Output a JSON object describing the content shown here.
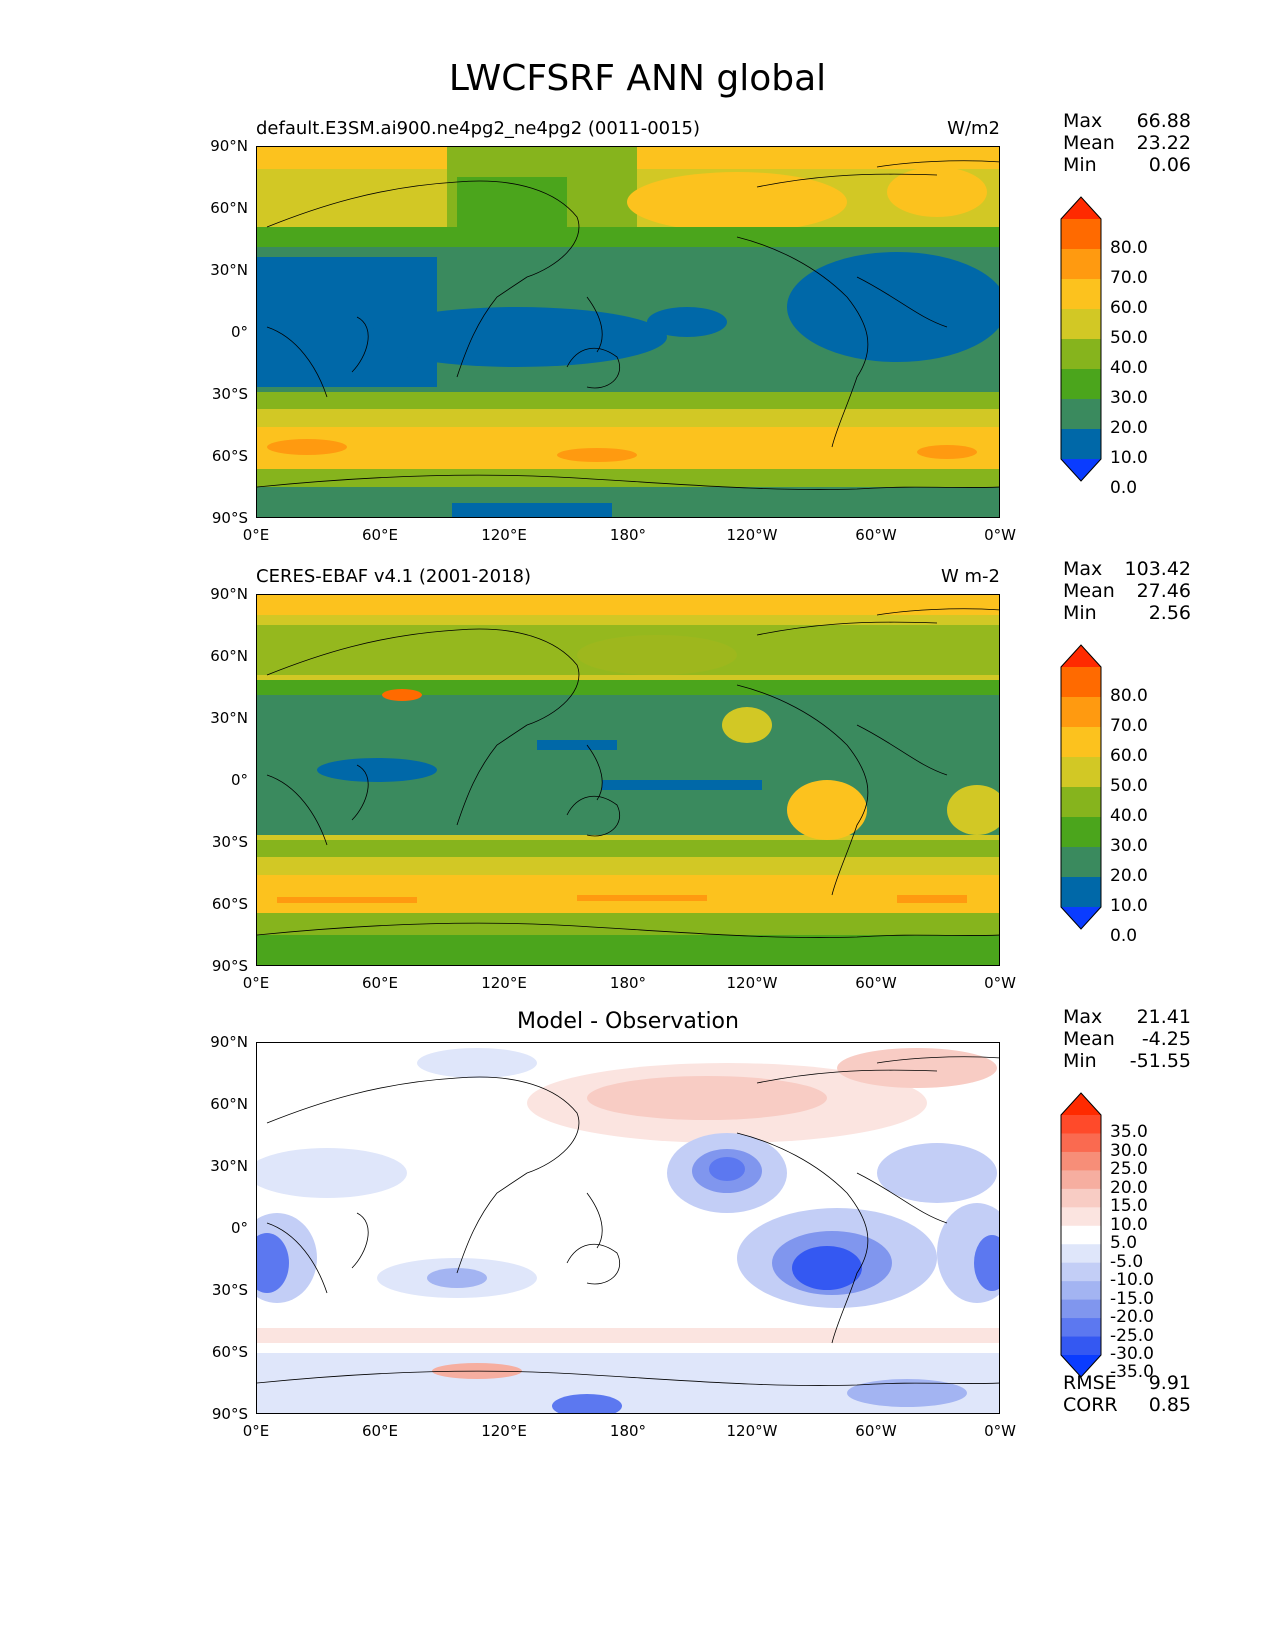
{
  "title": "LWCFSRF ANN global",
  "lat_labels": [
    "90°N",
    "60°N",
    "30°N",
    "0°",
    "30°S",
    "60°S",
    "90°S"
  ],
  "lon_labels": [
    "0°E",
    "60°E",
    "120°E",
    "180°",
    "120°W",
    "60°W",
    "0°W"
  ],
  "panels": [
    {
      "left_title": "default.E3SM.ai900.ne4pg2_ne4pg2 (0011-0015)",
      "right_title": "W/m2",
      "center_title": "",
      "stats": [
        {
          "label": "Max",
          "value": "66.88"
        },
        {
          "label": "Mean",
          "value": "23.22"
        },
        {
          "label": "Min",
          "value": "0.06"
        }
      ],
      "colorbar_labels": [
        "80.0",
        "70.0",
        "60.0",
        "50.0",
        "40.0",
        "30.0",
        "20.0",
        "10.0",
        "0.0"
      ],
      "colorbar_colors": [
        "#ff2a00",
        "#ff6a00",
        "#ff9a10",
        "#fcc21e",
        "#d2c825",
        "#86b41d",
        "#4ba51c",
        "#3a8a5e",
        "#0068a8",
        "#0a3cff"
      ]
    },
    {
      "left_title": "CERES-EBAF v4.1 (2001-2018)",
      "right_title": "W m-2",
      "center_title": "",
      "stats": [
        {
          "label": "Max",
          "value": "103.42"
        },
        {
          "label": "Mean",
          "value": "27.46"
        },
        {
          "label": "Min",
          "value": "2.56"
        }
      ],
      "colorbar_labels": [
        "80.0",
        "70.0",
        "60.0",
        "50.0",
        "40.0",
        "30.0",
        "20.0",
        "10.0",
        "0.0"
      ],
      "colorbar_colors": [
        "#ff2a00",
        "#ff6a00",
        "#ff9a10",
        "#fcc21e",
        "#d2c825",
        "#86b41d",
        "#4ba51c",
        "#3a8a5e",
        "#0068a8",
        "#0a3cff"
      ]
    },
    {
      "left_title": "",
      "right_title": "",
      "center_title": "Model - Observation",
      "stats": [
        {
          "label": "Max",
          "value": "21.41"
        },
        {
          "label": "Mean",
          "value": "-4.25"
        },
        {
          "label": "Min",
          "value": "-51.55"
        }
      ],
      "extra_stats": [
        {
          "label": "RMSE",
          "value": "9.91"
        },
        {
          "label": "CORR",
          "value": "0.85"
        }
      ],
      "colorbar_labels": [
        "35.0",
        "30.0",
        "25.0",
        "20.0",
        "15.0",
        "10.0",
        "5.0",
        "-5.0",
        "-10.0",
        "-15.0",
        "-20.0",
        "-25.0",
        "-30.0",
        "-35.0"
      ],
      "colorbar_colors": [
        "#ff2a00",
        "#ff4a2a",
        "#fa6a50",
        "#f78e78",
        "#f6aea0",
        "#f8ccc4",
        "#fbe4e0",
        "#ffffff",
        "#dfe6fa",
        "#c3cef6",
        "#a3b4f2",
        "#8096ee",
        "#5c78f0",
        "#3458f2",
        "#0a3cff"
      ]
    }
  ]
}
